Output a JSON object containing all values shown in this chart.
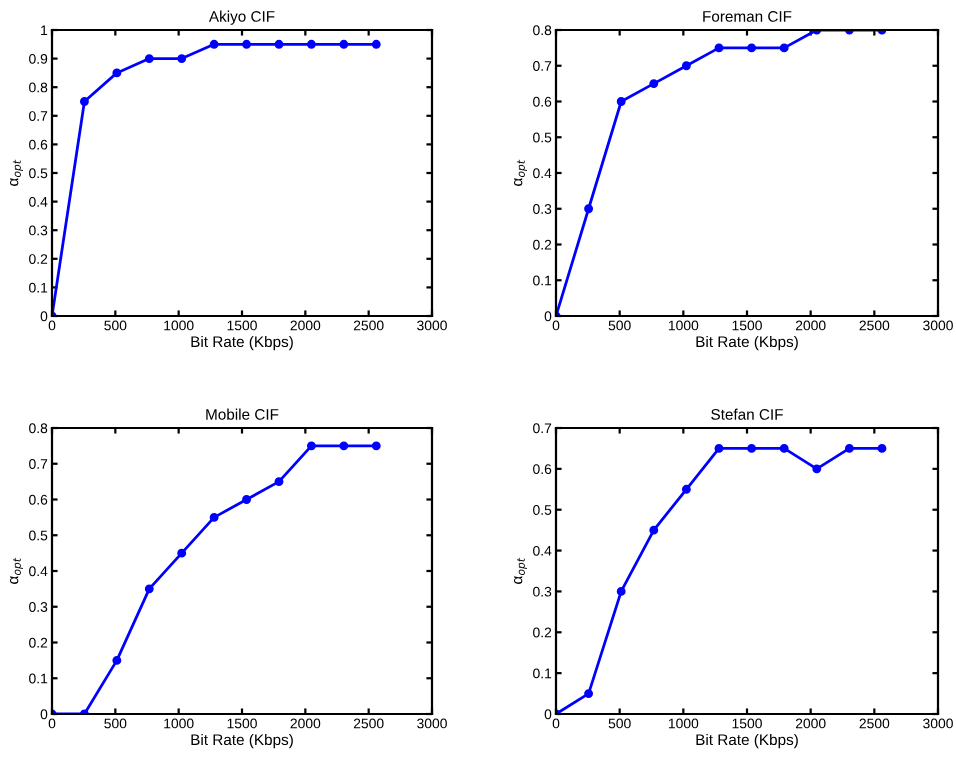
{
  "chart_data": [
    {
      "type": "line",
      "title": "Akiyo CIF",
      "xlabel": "Bit Rate (Kbps)",
      "ylabel": "α$_{opt}$",
      "x": [
        0,
        256,
        512,
        768,
        1024,
        1280,
        1536,
        1792,
        2048,
        2304,
        2560
      ],
      "series": [
        {
          "color": "#0000ff",
          "values": [
            0,
            0.75,
            0.85,
            0.9,
            0.9,
            0.95,
            0.95,
            0.95,
            0.95,
            0.95,
            0.95
          ]
        }
      ],
      "xlim": [
        0,
        3000
      ],
      "xticks": [
        0,
        500,
        1000,
        1500,
        2000,
        2500,
        3000
      ],
      "ylim": [
        0,
        1
      ],
      "yticks": [
        0,
        0.1,
        0.2,
        0.3,
        0.4,
        0.5,
        0.6,
        0.7,
        0.8,
        0.9,
        1
      ],
      "marker": "circle",
      "line_style": "solid",
      "grid": false
    },
    {
      "type": "line",
      "title": "Foreman CIF",
      "xlabel": "Bit Rate (Kbps)",
      "ylabel": "α$_{opt}$",
      "x": [
        0,
        256,
        512,
        768,
        1024,
        1280,
        1536,
        1792,
        2048,
        2304,
        2560
      ],
      "series": [
        {
          "color": "#0000ff",
          "values": [
            0,
            0.3,
            0.6,
            0.65,
            0.7,
            0.75,
            0.75,
            0.75,
            0.8,
            0.8,
            0.8
          ]
        }
      ],
      "xlim": [
        0,
        3000
      ],
      "xticks": [
        0,
        500,
        1000,
        1500,
        2000,
        2500,
        3000
      ],
      "ylim": [
        0,
        0.8
      ],
      "yticks": [
        0,
        0.1,
        0.2,
        0.3,
        0.4,
        0.5,
        0.6,
        0.7,
        0.8
      ],
      "marker": "circle",
      "line_style": "solid",
      "grid": false
    },
    {
      "type": "line",
      "title": "Mobile CIF",
      "xlabel": "Bit Rate (Kbps)",
      "ylabel": "α$_{opt}$",
      "x": [
        0,
        256,
        512,
        768,
        1024,
        1280,
        1536,
        1792,
        2048,
        2304,
        2560
      ],
      "series": [
        {
          "color": "#0000ff",
          "values": [
            0,
            0,
            0.15,
            0.35,
            0.45,
            0.55,
            0.6,
            0.65,
            0.75,
            0.75,
            0.75
          ]
        }
      ],
      "xlim": [
        0,
        3000
      ],
      "xticks": [
        0,
        500,
        1000,
        1500,
        2000,
        2500,
        3000
      ],
      "ylim": [
        0,
        0.8
      ],
      "yticks": [
        0,
        0.1,
        0.2,
        0.3,
        0.4,
        0.5,
        0.6,
        0.7,
        0.8
      ],
      "marker": "circle",
      "line_style": "solid",
      "grid": false
    },
    {
      "type": "line",
      "title": "Stefan CIF",
      "xlabel": "Bit Rate (Kbps)",
      "ylabel": "α$_{opt}$",
      "x": [
        0,
        256,
        512,
        768,
        1024,
        1280,
        1536,
        1792,
        2048,
        2304,
        2560
      ],
      "series": [
        {
          "color": "#0000ff",
          "values": [
            0,
            0.05,
            0.3,
            0.45,
            0.55,
            0.65,
            0.65,
            0.65,
            0.6,
            0.65,
            0.65
          ]
        }
      ],
      "xlim": [
        0,
        3000
      ],
      "xticks": [
        0,
        500,
        1000,
        1500,
        2000,
        2500,
        3000
      ],
      "ylim": [
        0,
        0.7
      ],
      "yticks": [
        0,
        0.1,
        0.2,
        0.3,
        0.4,
        0.5,
        0.6,
        0.7
      ],
      "marker": "circle",
      "line_style": "solid",
      "grid": false
    }
  ]
}
